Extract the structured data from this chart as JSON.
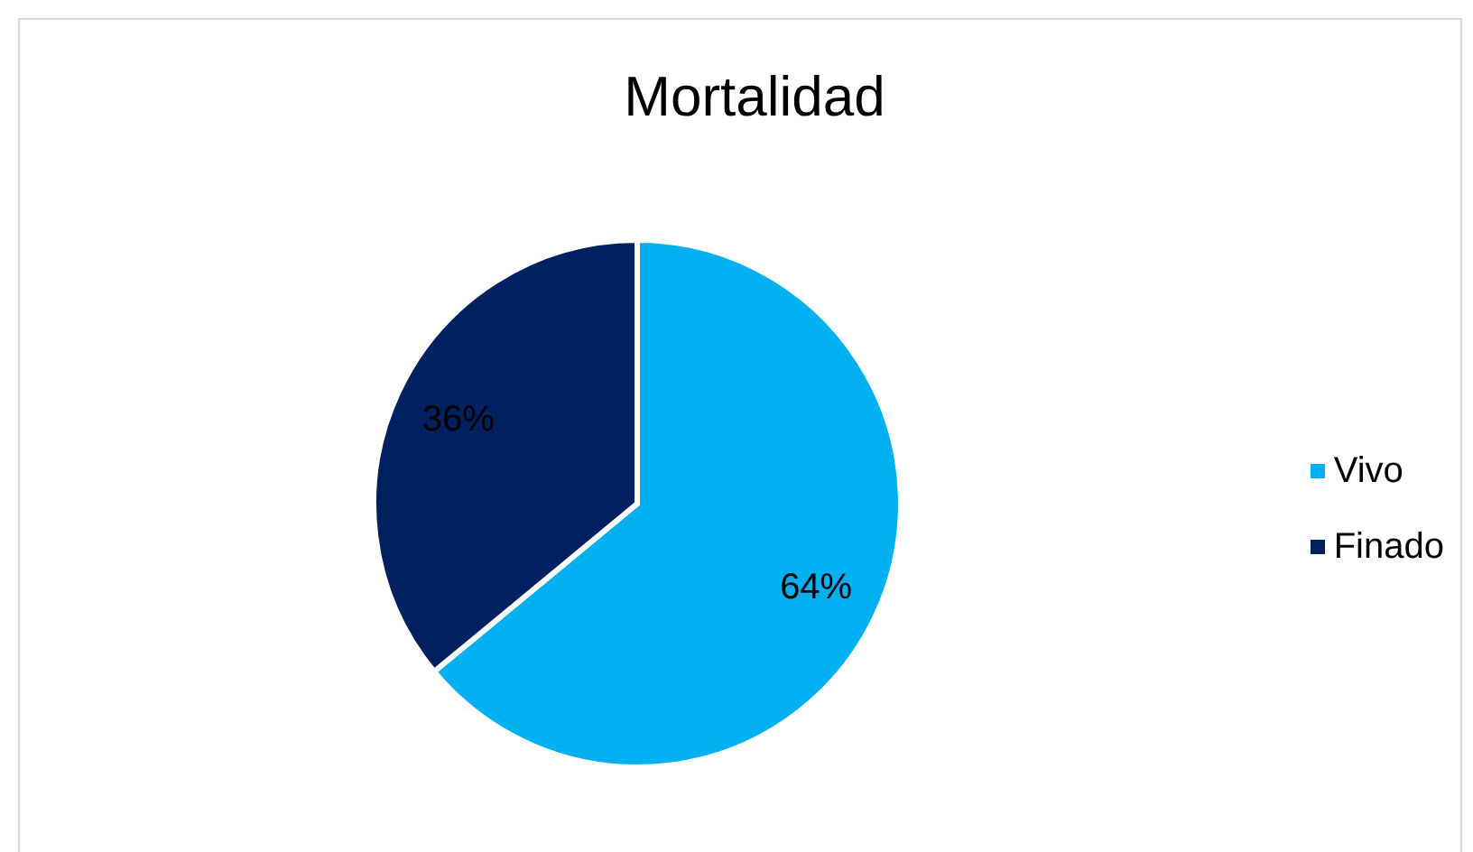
{
  "chart_data": {
    "type": "pie",
    "title": "Mortalidad",
    "categories": [
      "Vivo",
      "Finado"
    ],
    "values": [
      64,
      36
    ],
    "colors": [
      "#00b0f0",
      "#002060"
    ],
    "value_labels": [
      "64%",
      "36%"
    ],
    "legend": "right"
  }
}
